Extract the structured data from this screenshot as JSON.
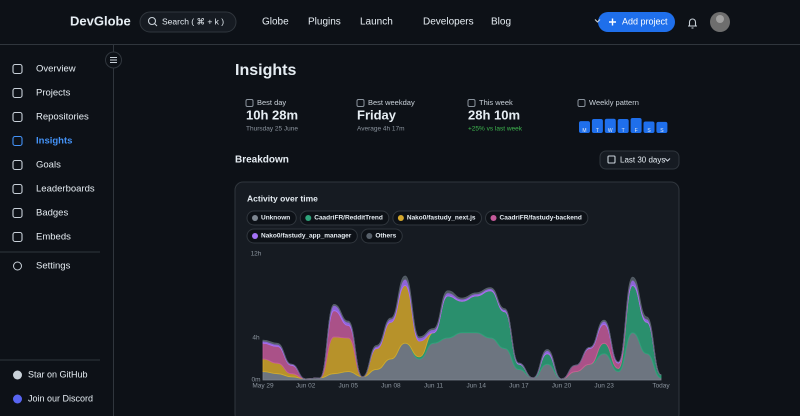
{
  "header": {
    "logo": "DevGlobe",
    "search": "Search ( ⌘ + k )",
    "nav": [
      "Globe",
      "Plugins",
      "Launch",
      "Developers",
      "Blog"
    ],
    "add_project": "Add project"
  },
  "sidebar": {
    "nav": [
      "Overview",
      "Projects",
      "Repositories",
      "Insights",
      "Goals",
      "Leaderboards",
      "Badges",
      "Embeds"
    ],
    "settings": "Settings",
    "footer": [
      "Star on GitHub",
      "Join our Discord"
    ]
  },
  "page": {
    "title": "Insights",
    "stats": [
      {
        "label": "Best day",
        "value": "10h 28m",
        "note": "Thursday 25 June"
      },
      {
        "label": "Best weekday",
        "value": "Friday",
        "note": "Average 4h 17m"
      },
      {
        "label": "This week",
        "value": "28h 10m",
        "note": "+25% vs last week"
      }
    ],
    "weekly_pattern": {
      "label": "Weekly pattern",
      "days": [
        "M",
        "T",
        "W",
        "T",
        "F",
        "S",
        "S"
      ],
      "values": [
        3.4,
        4.0,
        4.1,
        4.0,
        4.3,
        3.3,
        3.2
      ]
    },
    "breakdown": "Breakdown",
    "range": "Last 30 days"
  },
  "chart_data": {
    "type": "area",
    "stacked": true,
    "title": "Activity over time",
    "categories": [
      "May 29",
      null,
      null,
      "Jun 02",
      null,
      null,
      "Jun 05",
      null,
      null,
      "Jun 08",
      null,
      null,
      "Jun 11",
      null,
      null,
      "Jun 14",
      null,
      null,
      "Jun 17",
      null,
      null,
      "Jun 20",
      null,
      null,
      "Jun 23",
      null,
      null,
      null,
      "Today"
    ],
    "series": [
      {
        "name": "Unknown",
        "color": "#7d8590",
        "values": [
          0.8,
          0.6,
          0.3,
          0.1,
          0.2,
          0.6,
          0.8,
          0.3,
          1.0,
          2.0,
          3.5,
          2.0,
          3.5,
          4.0,
          4.5,
          4.5,
          4.0,
          3.0,
          1.0,
          0.2,
          1.5,
          0.1,
          0.8,
          1.5,
          2.5,
          0.8,
          4.5,
          2.5,
          0.2
        ]
      },
      {
        "name": "CaadriFR/RedditTrend",
        "color": "#2ea37a",
        "values": [
          0,
          0,
          0,
          0,
          0,
          0,
          0,
          0,
          0,
          0,
          0,
          0.2,
          1.0,
          4.0,
          3.0,
          3.5,
          4.5,
          3.5,
          0.5,
          0,
          1.0,
          0,
          0,
          0,
          1.0,
          0.3,
          4.5,
          3.0,
          0.3
        ]
      },
      {
        "name": "Nako0/fastudy_next.js",
        "color": "#d4a72c",
        "values": [
          1.2,
          1.0,
          0.3,
          0,
          0,
          3.5,
          3.2,
          0,
          2.0,
          3.5,
          5.5,
          1.5,
          0,
          0,
          0,
          0,
          0,
          0,
          0,
          0,
          0,
          0,
          0,
          0,
          0,
          0,
          0,
          0,
          0
        ]
      },
      {
        "name": "CaadriFR/fastudy-backend",
        "color": "#c45a9a",
        "values": [
          1.5,
          1.6,
          0.8,
          0,
          0,
          2.5,
          1.2,
          0,
          0,
          0,
          0,
          0,
          0,
          0,
          0,
          0,
          0,
          0,
          0,
          0,
          0,
          0,
          0.6,
          1.5,
          1.8,
          0.5,
          0,
          0,
          0
        ]
      },
      {
        "name": "Nako0/fastudy_app_manager",
        "color": "#a371f7",
        "values": [
          0.2,
          0.2,
          0.1,
          0,
          0,
          0.5,
          0.3,
          0,
          0.2,
          0.3,
          0.6,
          0.3,
          0.3,
          0.3,
          0.2,
          0.2,
          0.2,
          0.2,
          0.1,
          0,
          0.3,
          0,
          0,
          0.1,
          0.3,
          0.1,
          0.5,
          0.3,
          0
        ]
      },
      {
        "name": "Others",
        "color": "#57606a",
        "values": [
          0.1,
          0.1,
          0,
          0,
          0,
          0.1,
          0.1,
          0,
          0.1,
          0.1,
          0.3,
          0.1,
          0.1,
          0.2,
          0.1,
          0.1,
          0.1,
          0.1,
          0,
          0,
          0.1,
          0,
          0,
          0,
          0.1,
          0,
          0.3,
          0.2,
          0
        ]
      }
    ],
    "ylim": [
      0,
      12
    ],
    "yticks": [
      {
        "value": 0,
        "label": "0m"
      },
      {
        "value": 4,
        "label": "4h"
      },
      {
        "value": 12,
        "label": "12h"
      }
    ]
  }
}
